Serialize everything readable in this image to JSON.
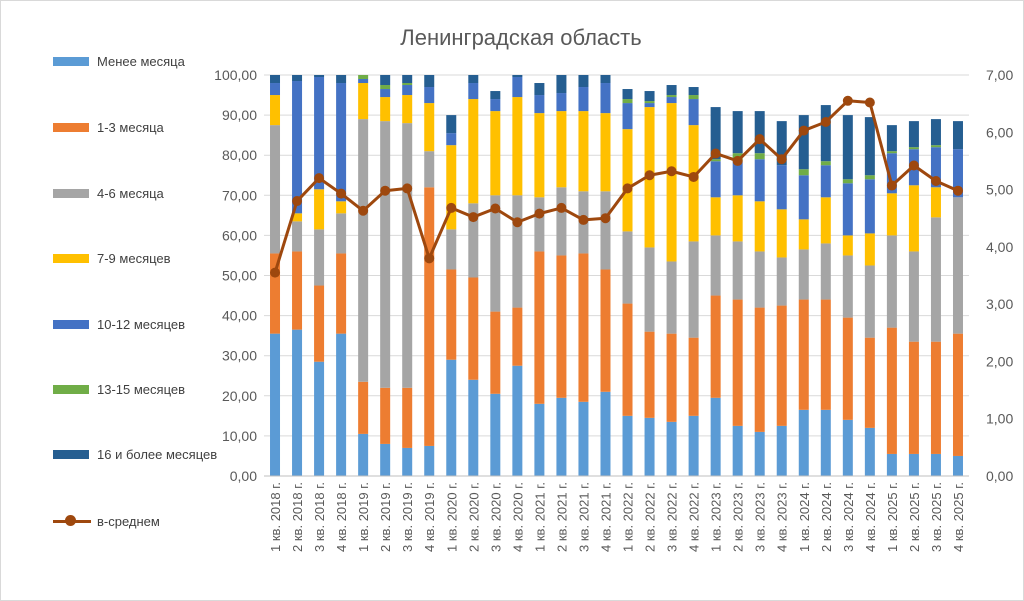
{
  "chart_data": {
    "type": "bar",
    "title": "Ленинградская область",
    "categories": [
      "1 кв. 2018 г.",
      "2 кв. 2018 г.",
      "3 кв. 2018 г.",
      "4 кв. 2018 г.",
      "1 кв. 2019 г.",
      "2 кв. 2019 г.",
      "3 кв. 2019 г.",
      "4 кв. 2019 г.",
      "1 кв. 2020 г.",
      "2 кв. 2020 г.",
      "3 кв. 2020 г.",
      "4 кв. 2020 г.",
      "1 кв. 2021 г.",
      "2 кв. 2021 г.",
      "3 кв. 2021 г.",
      "4 кв. 2021 г.",
      "1 кв. 2022 г.",
      "2 кв. 2022 г.",
      "3 кв. 2022 г.",
      "4 кв. 2022 г.",
      "1 кв. 2023 г.",
      "2 кв. 2023 г.",
      "3 кв. 2023 г.",
      "4 кв. 2023 г.",
      "1 кв. 2024 г.",
      "2 кв. 2024 г.",
      "3 кв. 2024 г.",
      "4 кв. 2024 г.",
      "1 кв. 2025 г.",
      "2 кв. 2025 г.",
      "3 кв. 2025 г.",
      "4 кв. 2025 г."
    ],
    "stacked": true,
    "series": [
      {
        "name": "Менее месяца",
        "color": "#5B9BD5",
        "values": [
          35.5,
          36.5,
          28.5,
          35.5,
          10.5,
          8.0,
          7.0,
          7.5,
          29.0,
          24.0,
          20.5,
          27.5,
          18.0,
          19.5,
          18.5,
          21.0,
          15.0,
          14.5,
          13.5,
          15.0,
          19.5,
          12.5,
          11.0,
          12.5,
          16.5,
          16.5,
          14.0,
          12.0,
          5.5,
          5.5,
          5.5,
          5.0
        ]
      },
      {
        "name": "1-3 месяца",
        "color": "#ED7D31",
        "values": [
          20.0,
          19.5,
          19.0,
          20.0,
          13.0,
          14.0,
          15.0,
          64.5,
          22.5,
          25.5,
          20.5,
          14.5,
          38.0,
          35.5,
          37.0,
          30.5,
          28.0,
          21.5,
          22.0,
          19.5,
          25.5,
          31.5,
          31.0,
          30.0,
          27.5,
          27.5,
          25.5,
          22.5,
          31.5,
          28.0,
          28.0,
          30.5
        ]
      },
      {
        "name": "4-6 месяца",
        "color": "#A5A5A5",
        "values": [
          32.0,
          7.5,
          14.0,
          10.0,
          65.5,
          66.5,
          66.0,
          9.0,
          10.0,
          18.5,
          29.0,
          28.0,
          13.5,
          17.0,
          15.5,
          19.5,
          18.0,
          21.0,
          18.0,
          24.0,
          15.0,
          14.5,
          14.0,
          12.0,
          12.5,
          14.0,
          15.5,
          18.0,
          23.0,
          22.5,
          31.0,
          34.0
        ]
      },
      {
        "name": "7-9 месяцев",
        "color": "#FFC000",
        "values": [
          7.5,
          2.0,
          10.0,
          3.0,
          9.0,
          6.0,
          7.0,
          12.0,
          21.0,
          26.0,
          21.0,
          24.5,
          21.0,
          19.0,
          20.0,
          19.5,
          25.5,
          35.0,
          39.5,
          29.0,
          9.5,
          11.5,
          12.5,
          12.0,
          7.5,
          11.5,
          5.0,
          8.0,
          10.5,
          16.5,
          7.5,
          0.0
        ]
      },
      {
        "name": "10-12 месяцев",
        "color": "#4472C4",
        "values": [
          3.0,
          33.0,
          28.0,
          29.5,
          1.0,
          2.0,
          2.5,
          4.0,
          3.0,
          4.0,
          3.0,
          5.0,
          4.5,
          4.5,
          6.0,
          7.5,
          6.5,
          1.0,
          1.5,
          6.5,
          9.0,
          8.5,
          10.5,
          11.0,
          11.0,
          8.0,
          13.0,
          13.5,
          10.0,
          9.0,
          10.0,
          12.0
        ]
      },
      {
        "name": "13-15 месяцев",
        "color": "#70AD47",
        "values": [
          0.0,
          0.0,
          0.0,
          0.0,
          1.0,
          1.0,
          0.5,
          0.0,
          0.0,
          0.0,
          0.0,
          0.0,
          0.0,
          0.0,
          0.0,
          0.0,
          1.0,
          0.5,
          0.5,
          1.0,
          0.5,
          2.0,
          1.5,
          0.0,
          1.5,
          1.0,
          1.0,
          1.0,
          0.5,
          0.5,
          0.5,
          0.0
        ]
      },
      {
        "name": "16 и более месяцев",
        "color": "#255E91",
        "values": [
          2.0,
          1.5,
          0.5,
          2.0,
          0.0,
          2.5,
          2.0,
          3.0,
          4.5,
          2.0,
          2.0,
          0.5,
          3.0,
          4.5,
          3.0,
          2.0,
          2.5,
          2.5,
          2.5,
          2.0,
          13.0,
          10.5,
          10.5,
          11.0,
          13.5,
          14.0,
          16.0,
          14.5,
          6.5,
          6.5,
          6.5,
          7.0
        ]
      }
    ],
    "line": {
      "name": "в-среднем",
      "color": "#9E480E",
      "axis": "right",
      "values": [
        3.55,
        4.8,
        5.2,
        4.93,
        4.63,
        4.98,
        5.02,
        3.8,
        4.68,
        4.52,
        4.67,
        4.43,
        4.58,
        4.68,
        4.47,
        4.5,
        5.02,
        5.25,
        5.32,
        5.22,
        5.63,
        5.5,
        5.88,
        5.53,
        6.03,
        6.18,
        6.55,
        6.52,
        5.07,
        5.42,
        5.15,
        4.98
      ]
    },
    "yaxis_left": {
      "min": 0,
      "max": 100,
      "ticks": [
        "0,00",
        "10,00",
        "20,00",
        "30,00",
        "40,00",
        "50,00",
        "60,00",
        "70,00",
        "80,00",
        "90,00",
        "100,00"
      ]
    },
    "yaxis_right": {
      "min": 0,
      "max": 7,
      "ticks": [
        "0,00",
        "1,00",
        "2,00",
        "3,00",
        "4,00",
        "5,00",
        "6,00",
        "7,00"
      ]
    },
    "grid": true,
    "legend_position": "left"
  }
}
